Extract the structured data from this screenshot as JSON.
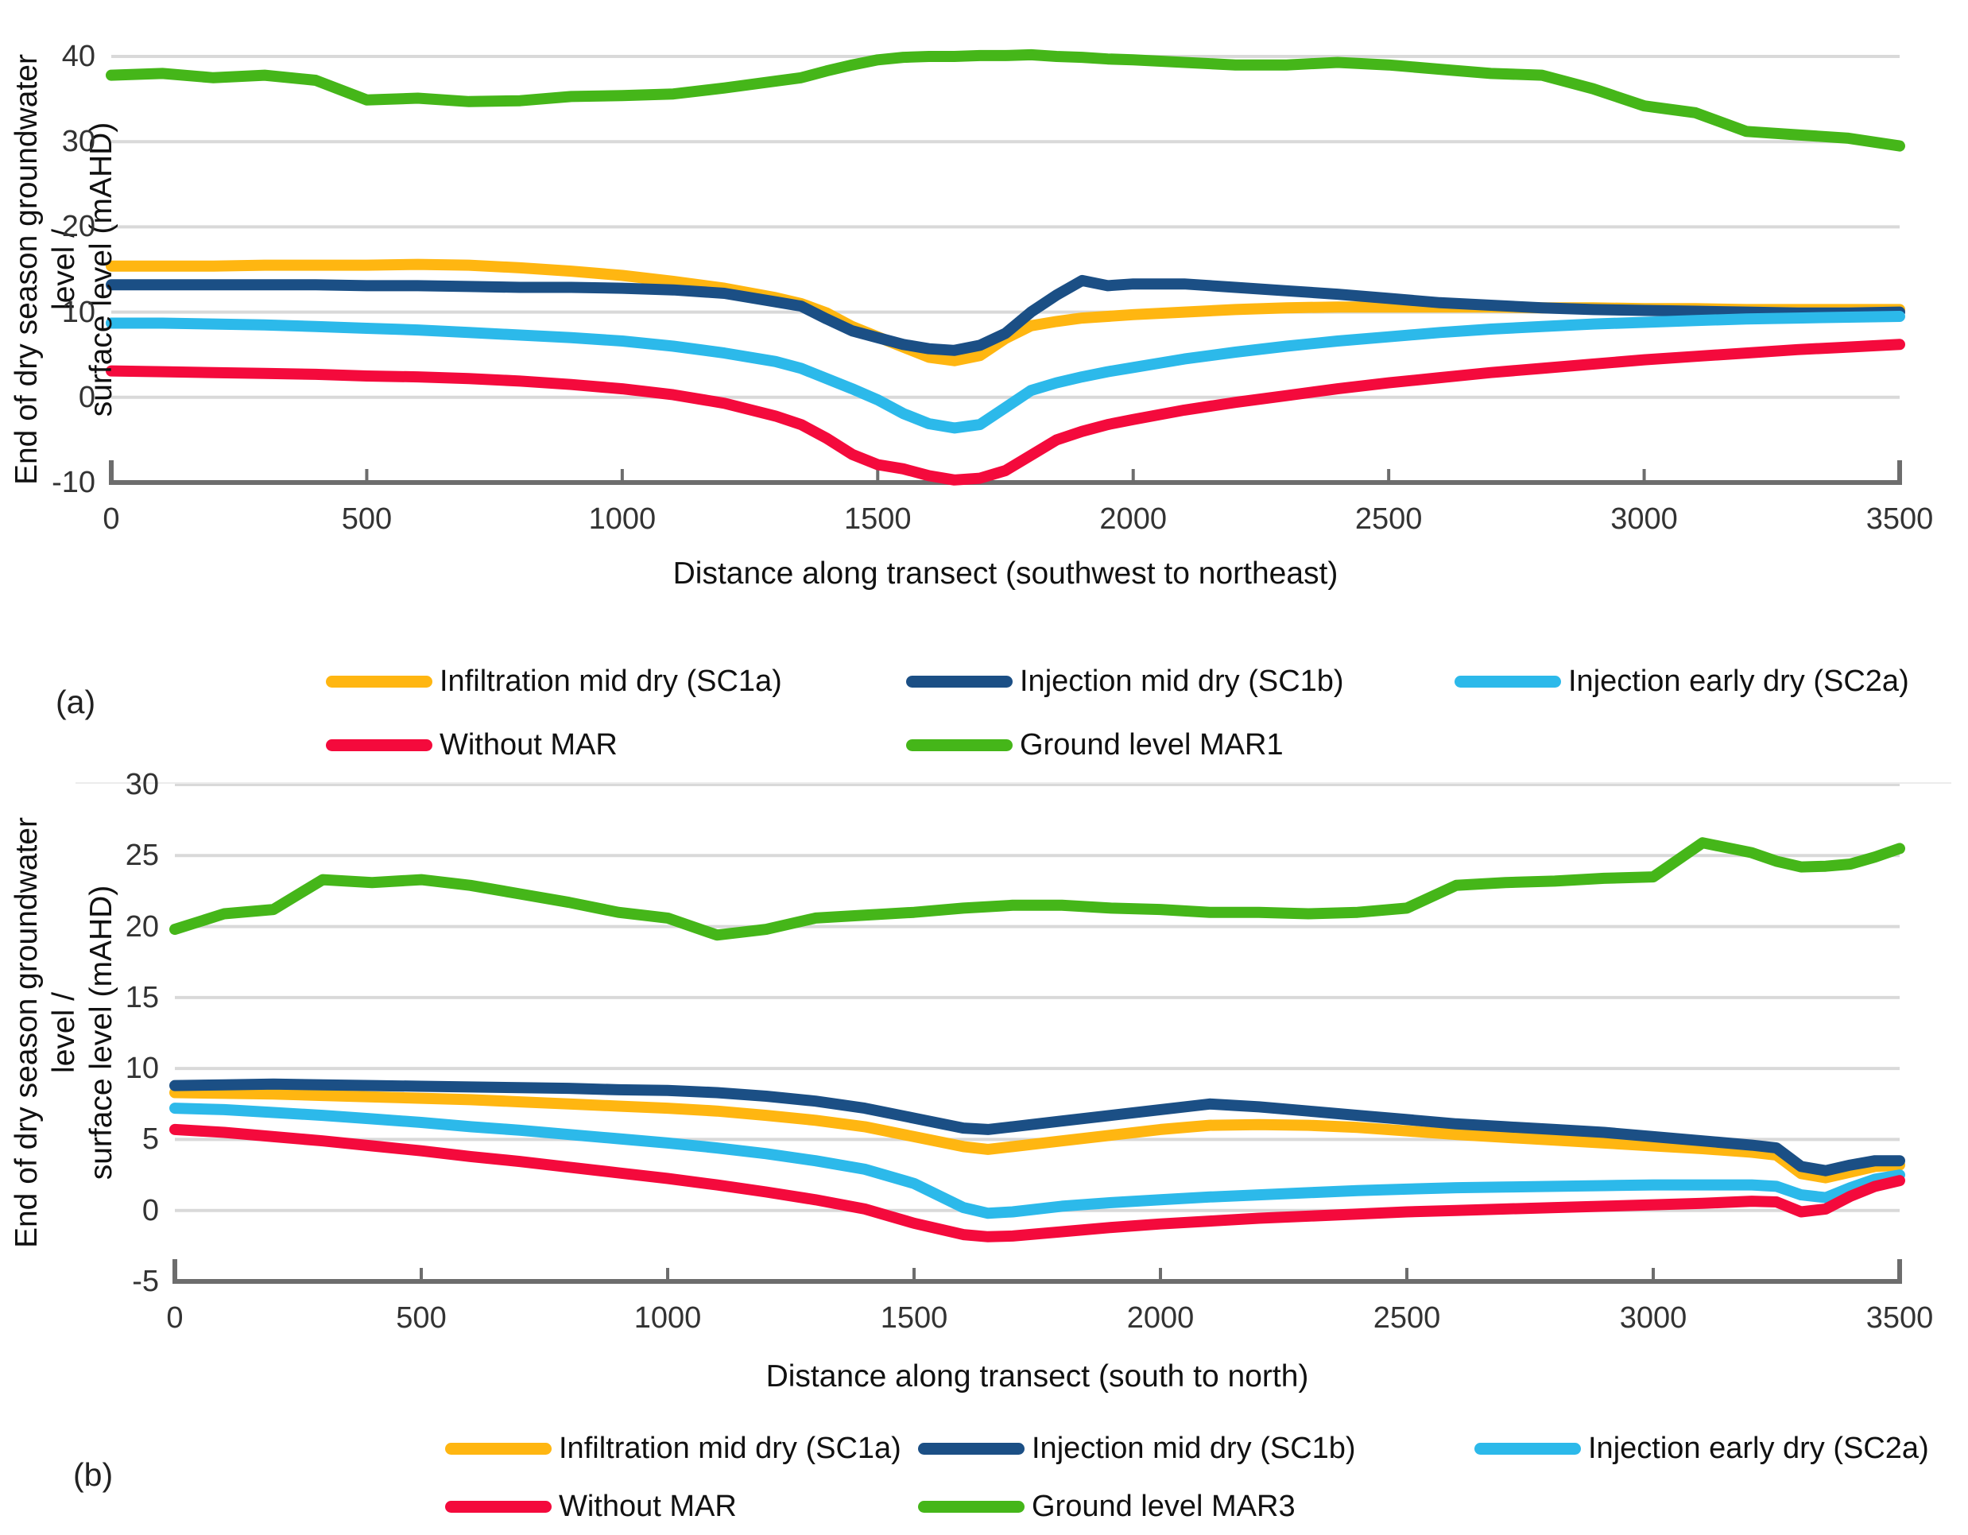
{
  "figure": {
    "background": "#ffffff",
    "grid_color": "#d9d9d9",
    "axis_color": "#6d6d6d",
    "panels": [
      {
        "panel_label": "(a)",
        "y_axis": {
          "title_line1": "End of dry season groundwater level /",
          "title_line2": "surface level  (mAHD)",
          "ticks": [
            "40",
            "30",
            "20",
            "10",
            "0",
            "-10"
          ]
        },
        "x_axis": {
          "title": "Distance along transect (southwest to northeast)",
          "ticks": [
            "0",
            "500",
            "1000",
            "1500",
            "2000",
            "2500",
            "3000",
            "3500"
          ]
        },
        "legend": {
          "rows": [
            [
              {
                "label": "Infiltration mid dry (SC1a)",
                "color": "#FFB611"
              },
              {
                "label": "Injection mid dry (SC1b)",
                "color": "#1B4F85"
              },
              {
                "label": "Injection early dry (SC2a)",
                "color": "#2CB9EA"
              }
            ],
            [
              {
                "label": "Without MAR",
                "color": "#F40A3C"
              },
              {
                "label": "Ground level MAR1",
                "color": "#45B619"
              }
            ]
          ]
        }
      },
      {
        "panel_label": "(b)",
        "y_axis": {
          "title_line1": "End of dry season groundwater level /",
          "title_line2": "surface level  (mAHD)",
          "ticks": [
            "30",
            "25",
            "20",
            "15",
            "10",
            "5",
            "0",
            "-5"
          ]
        },
        "x_axis": {
          "title": "Distance along transect (south to north)",
          "ticks": [
            "0",
            "500",
            "1000",
            "1500",
            "2000",
            "2500",
            "3000",
            "3500"
          ]
        },
        "legend": {
          "rows": [
            [
              {
                "label": "Infiltration mid dry (SC1a)",
                "color": "#FFB611"
              },
              {
                "label": "Injection mid dry (SC1b)",
                "color": "#1B4F85"
              },
              {
                "label": "Injection early dry (SC2a)",
                "color": "#2CB9EA"
              }
            ],
            [
              {
                "label": "Without MAR",
                "color": "#F40A3C"
              },
              {
                "label": "Ground level MAR3",
                "color": "#45B619"
              }
            ]
          ]
        }
      }
    ]
  },
  "chart_data": [
    {
      "type": "line",
      "title": "",
      "xlabel": "Distance along transect (southwest to northeast)",
      "ylabel": "End of dry season groundwater level / surface level (mAHD)",
      "xlim": [
        0,
        3500
      ],
      "ylim": [
        -10,
        40
      ],
      "y_tick_step": 10,
      "grid": true,
      "legend_position": "bottom",
      "x": [
        0,
        100,
        200,
        300,
        400,
        500,
        600,
        700,
        800,
        900,
        1000,
        1100,
        1200,
        1300,
        1350,
        1400,
        1450,
        1500,
        1550,
        1600,
        1650,
        1700,
        1750,
        1800,
        1850,
        1900,
        1950,
        2000,
        2100,
        2200,
        2300,
        2400,
        2500,
        2600,
        2700,
        2800,
        2900,
        3000,
        3100,
        3200,
        3300,
        3400,
        3500
      ],
      "series": [
        {
          "name": "Infiltration mid dry (SC1a)",
          "color": "#FFB611",
          "values": [
            15.4,
            15.4,
            15.4,
            15.5,
            15.5,
            15.5,
            15.6,
            15.5,
            15.2,
            14.8,
            14.3,
            13.6,
            12.8,
            11.7,
            11.0,
            9.9,
            8.3,
            7.1,
            5.9,
            4.7,
            4.3,
            4.9,
            6.9,
            8.4,
            8.9,
            9.3,
            9.5,
            9.7,
            10.0,
            10.3,
            10.5,
            10.6,
            10.6,
            10.6,
            10.6,
            10.5,
            10.5,
            10.4,
            10.4,
            10.3,
            10.3,
            10.3,
            10.3
          ]
        },
        {
          "name": "Injection mid dry (SC1b)",
          "color": "#1B4F85",
          "values": [
            13.2,
            13.2,
            13.2,
            13.2,
            13.2,
            13.1,
            13.1,
            13.0,
            12.9,
            12.9,
            12.8,
            12.6,
            12.2,
            11.2,
            10.7,
            9.2,
            7.8,
            7.0,
            6.2,
            5.7,
            5.5,
            6.1,
            7.5,
            10.0,
            12.0,
            13.7,
            13.1,
            13.3,
            13.3,
            12.9,
            12.5,
            12.1,
            11.6,
            11.1,
            10.8,
            10.5,
            10.3,
            10.2,
            10.1,
            10.0,
            9.9,
            9.9,
            10.0
          ]
        },
        {
          "name": "Injection early dry (SC2a)",
          "color": "#2CB9EA",
          "values": [
            8.7,
            8.7,
            8.6,
            8.5,
            8.3,
            8.1,
            7.9,
            7.6,
            7.3,
            7.0,
            6.6,
            6.0,
            5.2,
            4.2,
            3.4,
            2.2,
            1.0,
            -0.3,
            -1.9,
            -3.1,
            -3.6,
            -3.2,
            -1.2,
            0.8,
            1.7,
            2.4,
            3.0,
            3.5,
            4.5,
            5.3,
            6.0,
            6.6,
            7.1,
            7.6,
            8.0,
            8.3,
            8.6,
            8.8,
            9.0,
            9.2,
            9.3,
            9.4,
            9.5
          ]
        },
        {
          "name": "Without MAR",
          "color": "#F40A3C",
          "values": [
            3.1,
            3.0,
            2.9,
            2.8,
            2.7,
            2.5,
            2.4,
            2.2,
            1.9,
            1.5,
            1.0,
            0.3,
            -0.7,
            -2.2,
            -3.2,
            -4.8,
            -6.7,
            -7.9,
            -8.4,
            -9.2,
            -9.7,
            -9.5,
            -8.6,
            -6.8,
            -5.0,
            -4.0,
            -3.2,
            -2.6,
            -1.5,
            -0.6,
            0.2,
            1.0,
            1.7,
            2.3,
            2.9,
            3.4,
            3.9,
            4.4,
            4.8,
            5.2,
            5.6,
            5.9,
            6.2
          ]
        },
        {
          "name": "Ground level MAR1",
          "color": "#45B619",
          "values": [
            37.8,
            38.0,
            37.5,
            37.8,
            37.2,
            34.9,
            35.1,
            34.7,
            34.8,
            35.3,
            35.4,
            35.6,
            36.3,
            37.1,
            37.5,
            38.3,
            39.0,
            39.6,
            39.9,
            40.0,
            40.0,
            40.1,
            40.1,
            40.2,
            40.0,
            39.9,
            39.7,
            39.6,
            39.3,
            39.0,
            39.0,
            39.3,
            39.0,
            38.5,
            38.0,
            37.8,
            36.2,
            34.2,
            33.4,
            31.2,
            30.8,
            30.4,
            29.5
          ]
        }
      ]
    },
    {
      "type": "line",
      "title": "",
      "xlabel": "Distance along transect (south to north)",
      "ylabel": "End of dry season groundwater level / surface level (mAHD)",
      "xlim": [
        0,
        3500
      ],
      "ylim": [
        -5,
        30
      ],
      "y_tick_step": 5,
      "grid": true,
      "legend_position": "bottom",
      "x": [
        0,
        100,
        200,
        300,
        400,
        500,
        600,
        700,
        800,
        900,
        1000,
        1100,
        1200,
        1300,
        1400,
        1500,
        1600,
        1650,
        1700,
        1800,
        1900,
        2000,
        2100,
        2200,
        2300,
        2400,
        2500,
        2600,
        2700,
        2800,
        2900,
        3000,
        3100,
        3200,
        3250,
        3300,
        3350,
        3400,
        3450,
        3500
      ],
      "series": [
        {
          "name": "Infiltration mid dry (SC1a)",
          "color": "#FFB611",
          "values": [
            8.3,
            8.25,
            8.2,
            8.1,
            8.0,
            7.9,
            7.8,
            7.65,
            7.5,
            7.35,
            7.2,
            7.0,
            6.7,
            6.35,
            5.9,
            5.2,
            4.5,
            4.3,
            4.5,
            4.9,
            5.3,
            5.7,
            6.0,
            6.05,
            6.0,
            5.85,
            5.6,
            5.35,
            5.15,
            4.95,
            4.75,
            4.55,
            4.35,
            4.1,
            3.9,
            2.6,
            2.3,
            2.7,
            3.1,
            3.2
          ]
        },
        {
          "name": "Injection mid dry (SC1b)",
          "color": "#1B4F85",
          "values": [
            8.8,
            8.85,
            8.9,
            8.85,
            8.8,
            8.75,
            8.7,
            8.65,
            8.6,
            8.5,
            8.45,
            8.3,
            8.05,
            7.7,
            7.2,
            6.5,
            5.8,
            5.7,
            5.9,
            6.3,
            6.7,
            7.1,
            7.5,
            7.3,
            7.0,
            6.7,
            6.4,
            6.1,
            5.9,
            5.7,
            5.5,
            5.2,
            4.9,
            4.6,
            4.4,
            3.1,
            2.8,
            3.2,
            3.5,
            3.5
          ]
        },
        {
          "name": "Injection early dry (SC2a)",
          "color": "#2CB9EA",
          "values": [
            7.2,
            7.1,
            6.9,
            6.7,
            6.45,
            6.2,
            5.9,
            5.65,
            5.35,
            5.05,
            4.75,
            4.4,
            4.0,
            3.5,
            2.9,
            1.9,
            0.2,
            -0.2,
            -0.1,
            0.3,
            0.55,
            0.75,
            0.95,
            1.1,
            1.25,
            1.4,
            1.5,
            1.6,
            1.65,
            1.7,
            1.75,
            1.8,
            1.8,
            1.8,
            1.7,
            1.1,
            0.9,
            1.6,
            2.2,
            2.5
          ]
        },
        {
          "name": "Without MAR",
          "color": "#F40A3C",
          "values": [
            5.7,
            5.5,
            5.2,
            4.9,
            4.55,
            4.2,
            3.8,
            3.45,
            3.05,
            2.65,
            2.25,
            1.8,
            1.3,
            0.75,
            0.1,
            -0.9,
            -1.7,
            -1.85,
            -1.8,
            -1.5,
            -1.2,
            -0.95,
            -0.75,
            -0.55,
            -0.4,
            -0.25,
            -0.1,
            0.0,
            0.1,
            0.2,
            0.3,
            0.4,
            0.5,
            0.65,
            0.6,
            -0.1,
            0.1,
            1.0,
            1.7,
            2.1
          ]
        },
        {
          "name": "Ground level MAR3",
          "color": "#45B619",
          "values": [
            19.8,
            20.9,
            21.2,
            23.3,
            23.1,
            23.3,
            22.9,
            22.3,
            21.7,
            21.0,
            20.6,
            19.4,
            19.8,
            20.6,
            20.8,
            21.0,
            21.3,
            21.4,
            21.5,
            21.5,
            21.3,
            21.2,
            21.0,
            21.0,
            20.9,
            21.0,
            21.3,
            22.9,
            23.1,
            23.2,
            23.4,
            23.5,
            25.9,
            25.2,
            24.6,
            24.2,
            24.25,
            24.4,
            24.9,
            25.5
          ]
        }
      ]
    }
  ]
}
